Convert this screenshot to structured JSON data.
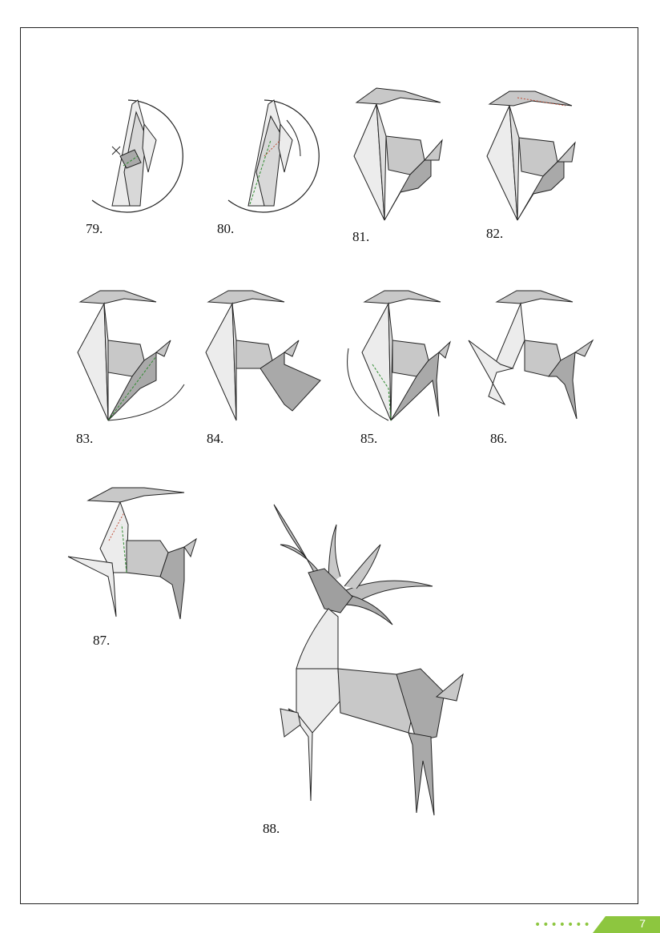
{
  "steps": [
    {
      "number": "79."
    },
    {
      "number": "80."
    },
    {
      "number": "81."
    },
    {
      "number": "82."
    },
    {
      "number": "83."
    },
    {
      "number": "84."
    },
    {
      "number": "85."
    },
    {
      "number": "86."
    },
    {
      "number": "87."
    },
    {
      "number": "88."
    }
  ],
  "footer": {
    "page_number": "7",
    "dots": "•••••••",
    "accent_color": "#8dc63f"
  },
  "colors": {
    "paper_light": "#ececec",
    "paper_mid": "#c8c8c8",
    "paper_dark": "#a9a9a9",
    "valley_fold": "#2e8b2e",
    "mountain_fold": "#c0503a"
  }
}
